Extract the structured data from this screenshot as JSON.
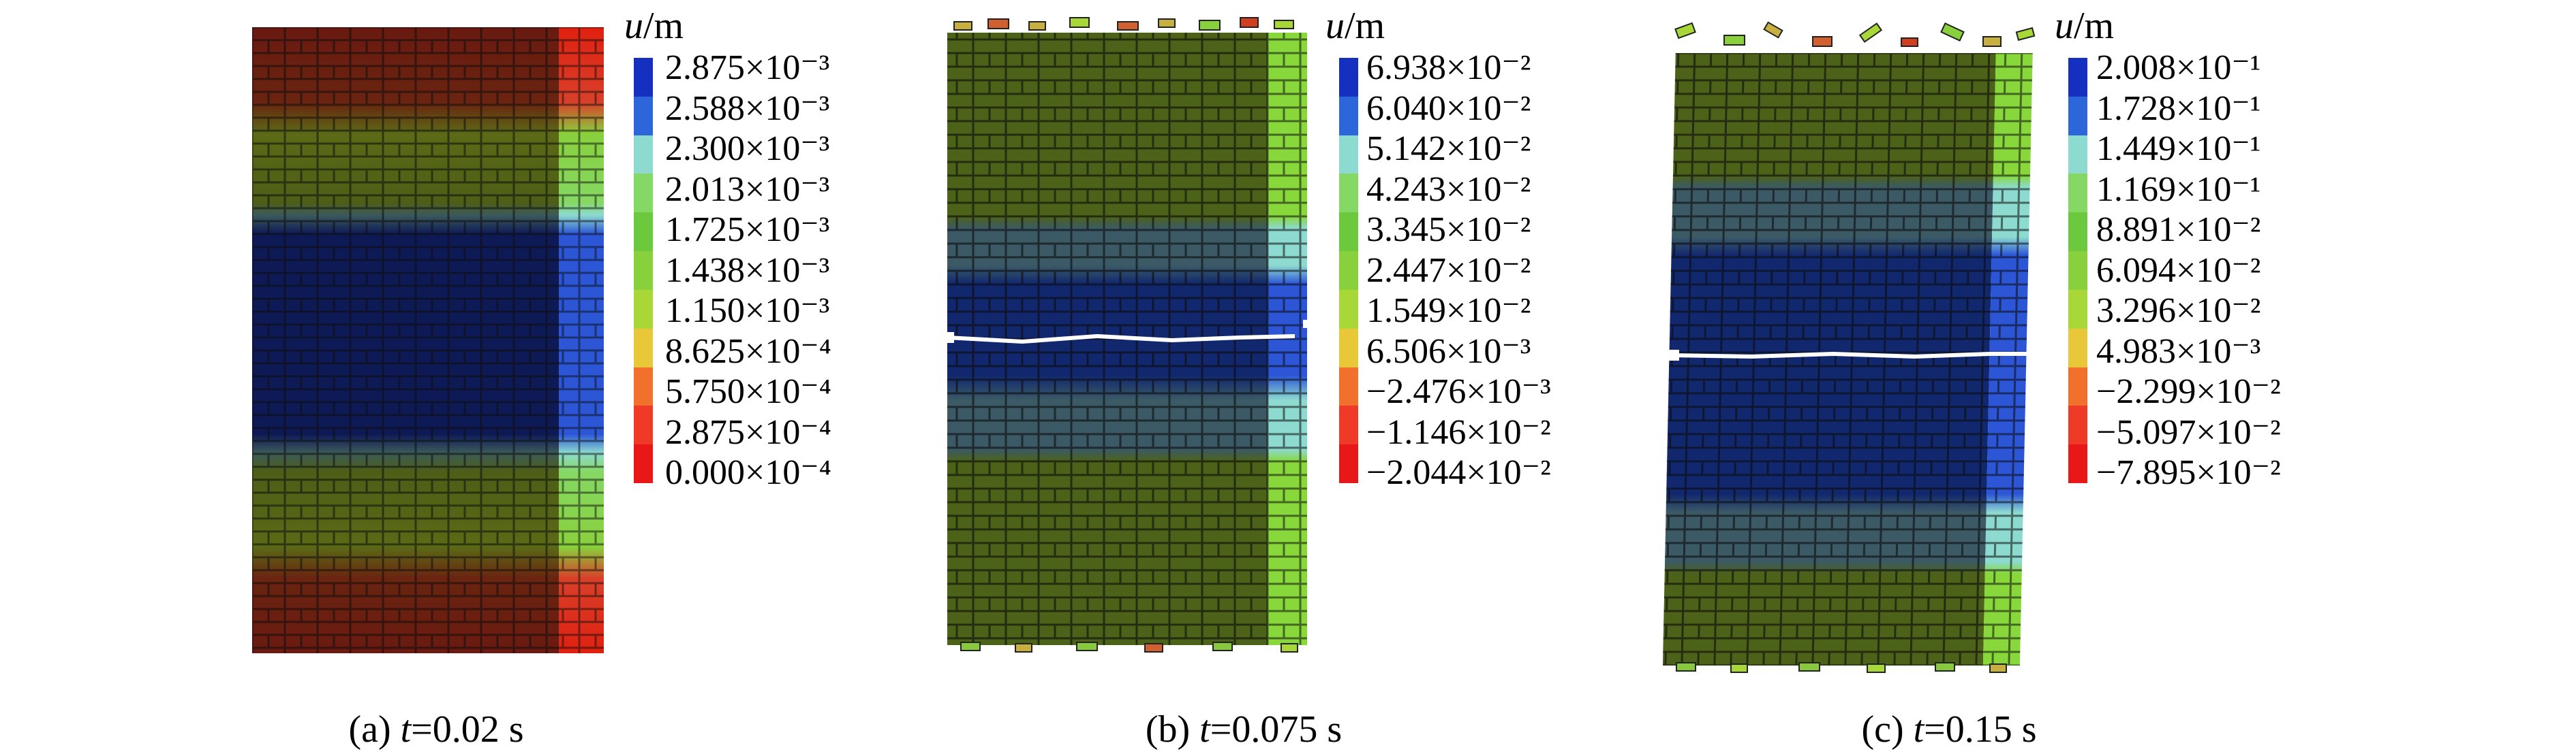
{
  "unit_symbol": "u",
  "unit_suffix": "/m",
  "panels": [
    {
      "id": "a",
      "caption_prefix": "(a) ",
      "caption_var": "t",
      "caption_value": "=0.02 s",
      "legend": [
        "2.875×10⁻³",
        "2.588×10⁻³",
        "2.300×10⁻³",
        "2.013×10⁻³",
        "1.725×10⁻³",
        "1.438×10⁻³",
        "1.150×10⁻³",
        "8.625×10⁻⁴",
        "5.750×10⁻⁴",
        "2.875×10⁻⁴",
        "0.000×10⁻⁴"
      ]
    },
    {
      "id": "b",
      "caption_prefix": "(b) ",
      "caption_var": "t",
      "caption_value": "=0.075 s",
      "legend": [
        "6.938×10⁻²",
        "6.040×10⁻²",
        "5.142×10⁻²",
        "4.243×10⁻²",
        "3.345×10⁻²",
        "2.447×10⁻²",
        "1.549×10⁻²",
        "6.506×10⁻³",
        "−2.476×10⁻³",
        "−1.146×10⁻²",
        "−2.044×10⁻²"
      ]
    },
    {
      "id": "c",
      "caption_prefix": "(c) ",
      "caption_var": "t",
      "caption_value": "=0.15 s",
      "legend": [
        "2.008×10⁻¹",
        "1.728×10⁻¹",
        "1.449×10⁻¹",
        "1.169×10⁻¹",
        "8.891×10⁻²",
        "6.094×10⁻²",
        "3.296×10⁻²",
        "4.983×10⁻³",
        "−2.299×10⁻²",
        "−5.097×10⁻²",
        "−7.895×10⁻²"
      ]
    }
  ],
  "colorbar": [
    "#1530c0",
    "#2c66da",
    "#8ddad0",
    "#86d864",
    "#6cc83c",
    "#88d03c",
    "#a8d838",
    "#e8c838",
    "#f0702c",
    "#ee3a26",
    "#e81818"
  ]
}
